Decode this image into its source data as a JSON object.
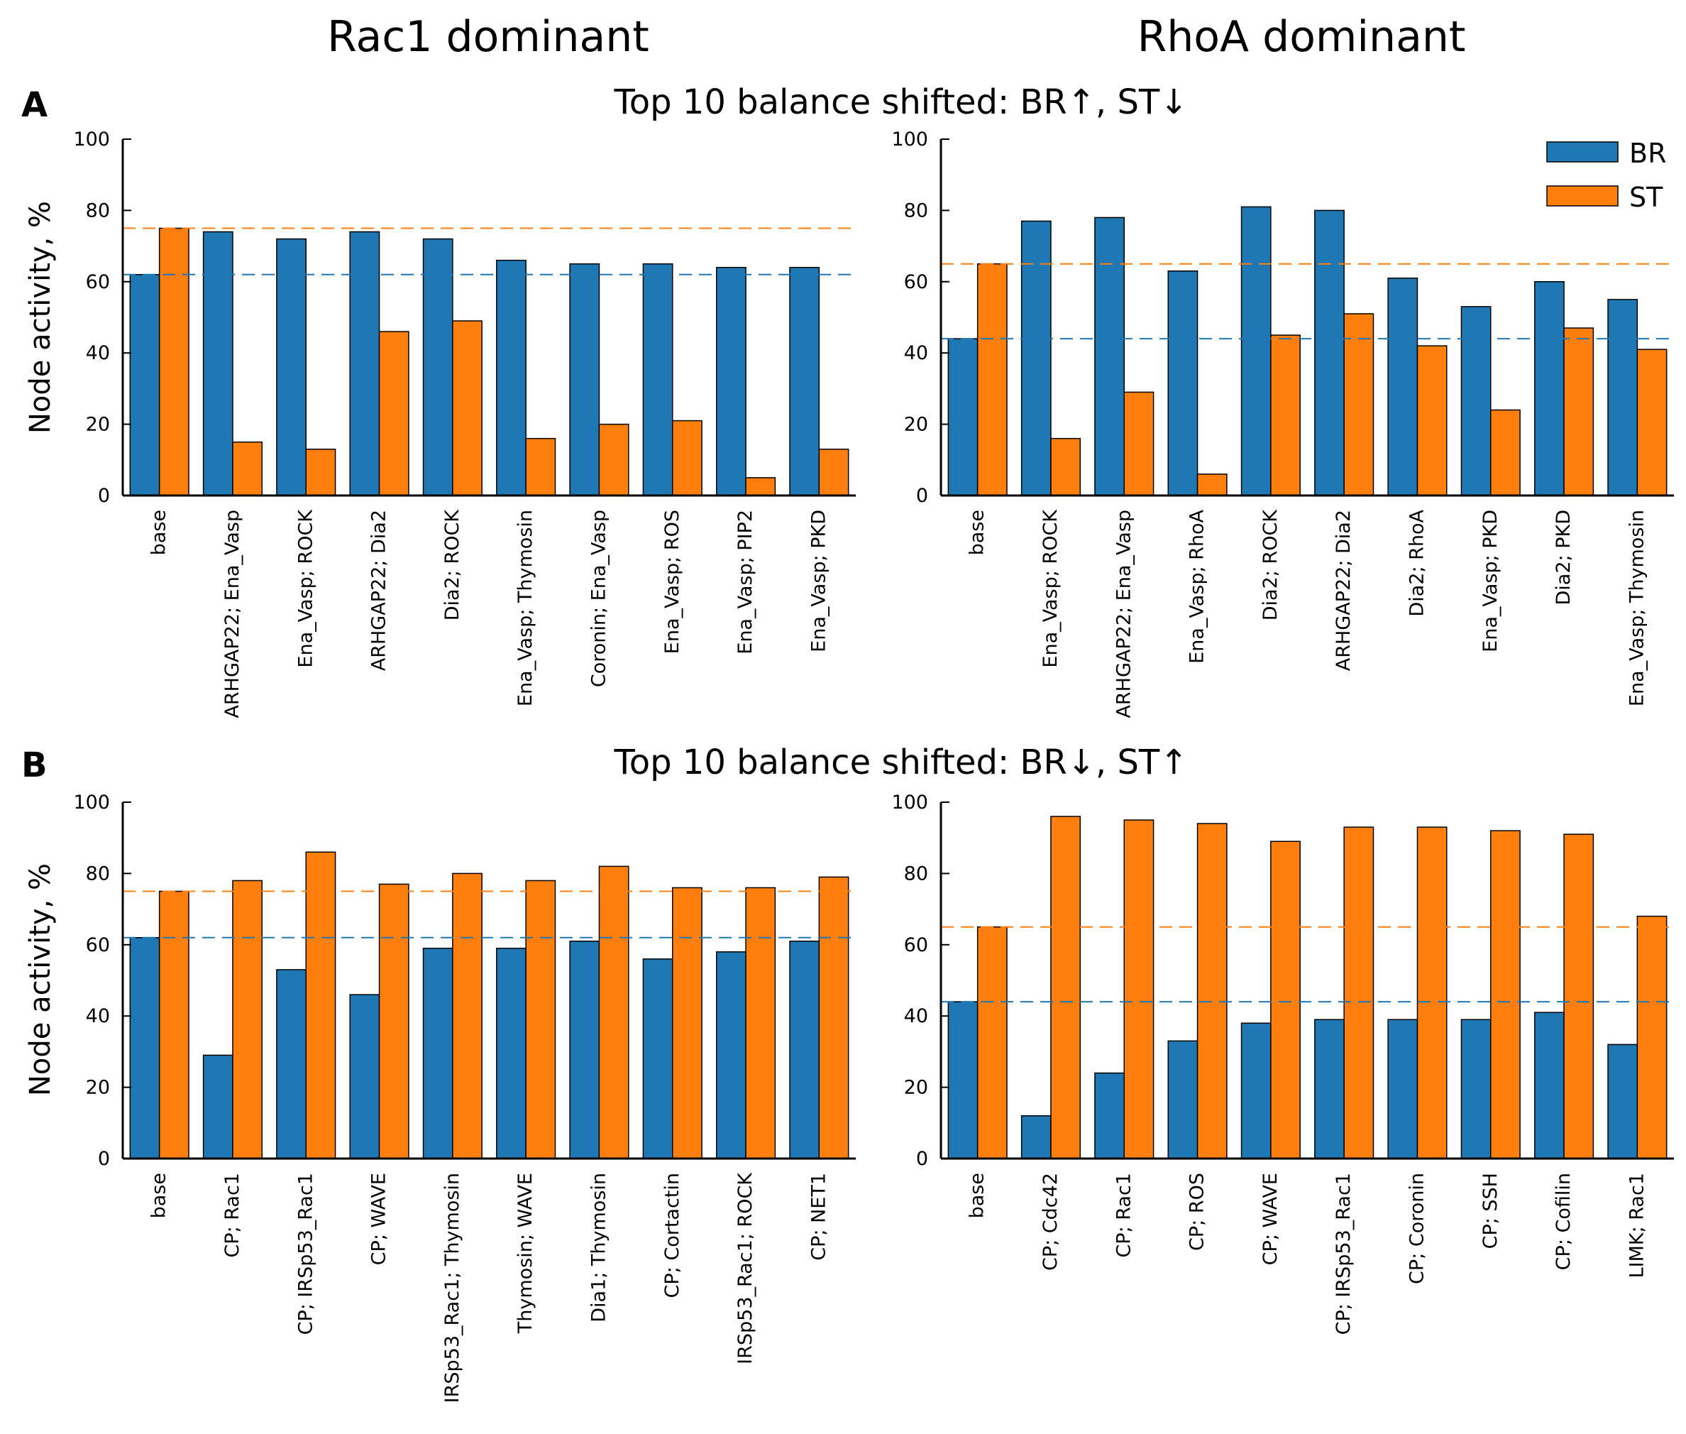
{
  "column_titles": [
    "Rac1 dominant",
    "RhoA dominant"
  ],
  "row_labels": [
    "A",
    "B"
  ],
  "row_titles": [
    "Top 10 balance shifted: BR↑, ST↓",
    "Top 10 balance shifted: BR↓, ST↑"
  ],
  "ylabel": "Node activity, %",
  "legend": {
    "items": [
      "BR",
      "ST"
    ],
    "placement": "top-right"
  },
  "colors": {
    "BR": "#1f77b4",
    "ST": "#ff7f0e"
  },
  "chart_data": [
    {
      "type": "bar",
      "categories": [
        "base",
        "ARHGAP22; Ena_Vasp",
        "Ena_Vasp; ROCK",
        "ARHGAP22; Dia2",
        "Dia2; ROCK",
        "Ena_Vasp; Thymosin",
        "Coronin; Ena_Vasp",
        "Ena_Vasp; ROS",
        "Ena_Vasp; PIP2",
        "Ena_Vasp; PKD"
      ],
      "series": [
        {
          "name": "BR",
          "values": [
            62,
            74,
            72,
            74,
            72,
            66,
            65,
            65,
            64,
            64
          ]
        },
        {
          "name": "ST",
          "values": [
            75,
            15,
            13,
            46,
            49,
            16,
            20,
            21,
            5,
            13
          ]
        }
      ],
      "baselines": {
        "BR": 62,
        "ST": 75
      },
      "ylim": [
        0,
        100
      ],
      "yticks": [
        0,
        20,
        40,
        60,
        80,
        100
      ]
    },
    {
      "type": "bar",
      "categories": [
        "base",
        "Ena_Vasp; ROCK",
        "ARHGAP22; Ena_Vasp",
        "Ena_Vasp; RhoA",
        "Dia2; ROCK",
        "ARHGAP22; Dia2",
        "Dia2; RhoA",
        "Ena_Vasp; PKD",
        "Dia2; PKD",
        "Ena_Vasp; Thymosin"
      ],
      "series": [
        {
          "name": "BR",
          "values": [
            44,
            77,
            78,
            63,
            81,
            80,
            61,
            53,
            60,
            55
          ]
        },
        {
          "name": "ST",
          "values": [
            65,
            16,
            29,
            6,
            45,
            51,
            42,
            24,
            47,
            41
          ]
        }
      ],
      "baselines": {
        "BR": 44,
        "ST": 65
      },
      "ylim": [
        0,
        100
      ],
      "yticks": [
        0,
        20,
        40,
        60,
        80,
        100
      ]
    },
    {
      "type": "bar",
      "categories": [
        "base",
        "CP; Rac1",
        "CP; IRSp53_Rac1",
        "CP; WAVE",
        "IRSp53_Rac1; Thymosin",
        "Thymosin; WAVE",
        "Dia1; Thymosin",
        "CP; Cortactin",
        "IRSp53_Rac1; ROCK",
        "CP; NET1"
      ],
      "series": [
        {
          "name": "BR",
          "values": [
            62,
            29,
            53,
            46,
            59,
            59,
            61,
            56,
            58,
            61
          ]
        },
        {
          "name": "ST",
          "values": [
            75,
            78,
            86,
            77,
            80,
            78,
            82,
            76,
            76,
            79
          ]
        }
      ],
      "baselines": {
        "BR": 62,
        "ST": 75
      },
      "ylim": [
        0,
        100
      ],
      "yticks": [
        0,
        20,
        40,
        60,
        80,
        100
      ]
    },
    {
      "type": "bar",
      "categories": [
        "base",
        "CP; Cdc42",
        "CP; Rac1",
        "CP; ROS",
        "CP; WAVE",
        "CP; IRSp53_Rac1",
        "CP; Coronin",
        "CP; SSH",
        "CP; Cofilin",
        "LIMK; Rac1"
      ],
      "series": [
        {
          "name": "BR",
          "values": [
            44,
            12,
            24,
            33,
            38,
            39,
            39,
            39,
            41,
            32
          ]
        },
        {
          "name": "ST",
          "values": [
            65,
            96,
            95,
            94,
            89,
            93,
            93,
            92,
            91,
            68
          ]
        }
      ],
      "baselines": {
        "BR": 44,
        "ST": 65
      },
      "ylim": [
        0,
        100
      ],
      "yticks": [
        0,
        20,
        40,
        60,
        80,
        100
      ]
    }
  ]
}
